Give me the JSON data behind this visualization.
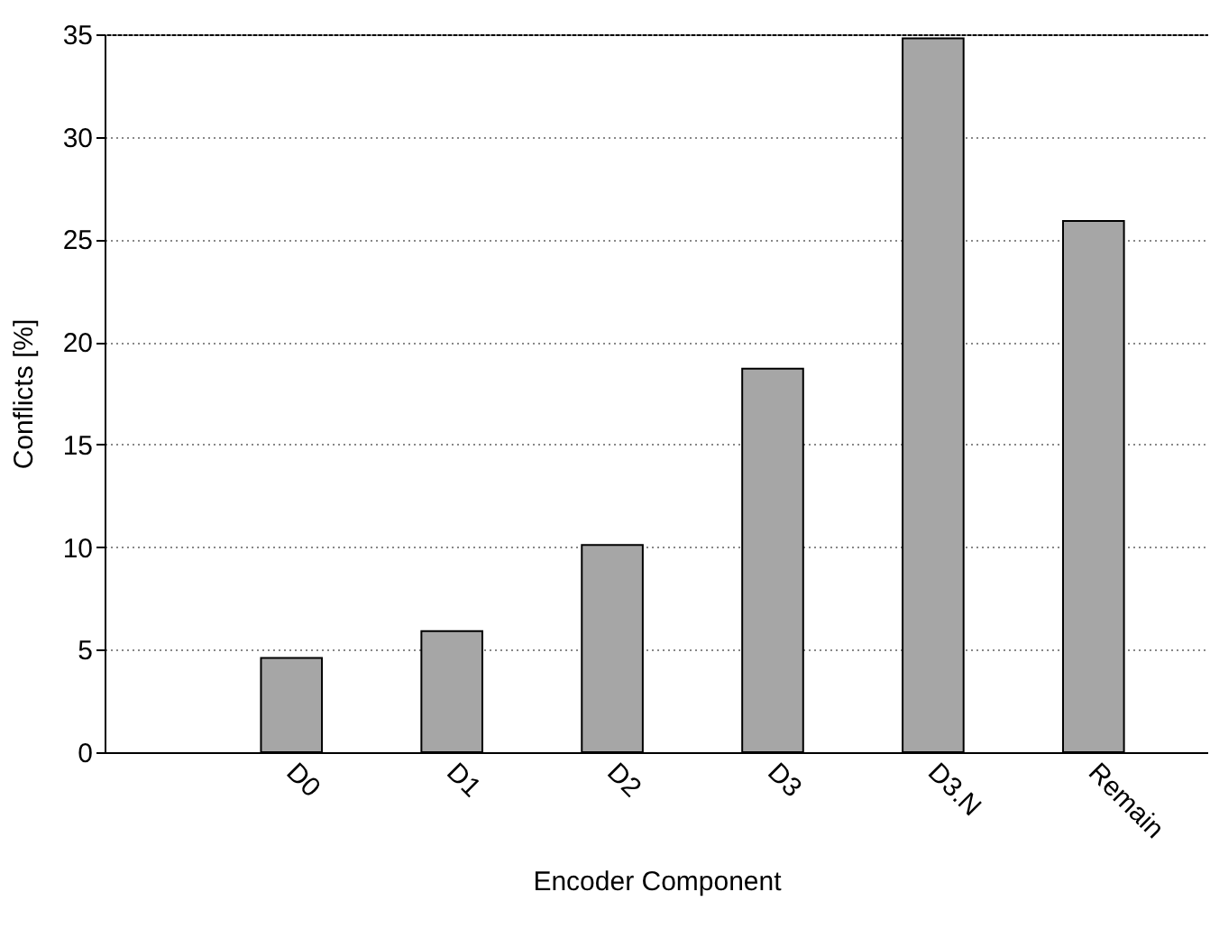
{
  "chart_data": {
    "type": "bar",
    "xlabel": "Encoder Component",
    "ylabel": "Conflicts [%]",
    "categories": [
      "D0",
      "D1",
      "D2",
      "D3",
      "D3.N",
      "Remain"
    ],
    "values": [
      4.6,
      5.9,
      10.1,
      18.7,
      34.8,
      25.9
    ],
    "color": "#a6a6a6",
    "ylim": [
      0,
      35
    ],
    "yticks": [
      0,
      5,
      10,
      15,
      20,
      25,
      30,
      35
    ],
    "grid": "y"
  }
}
